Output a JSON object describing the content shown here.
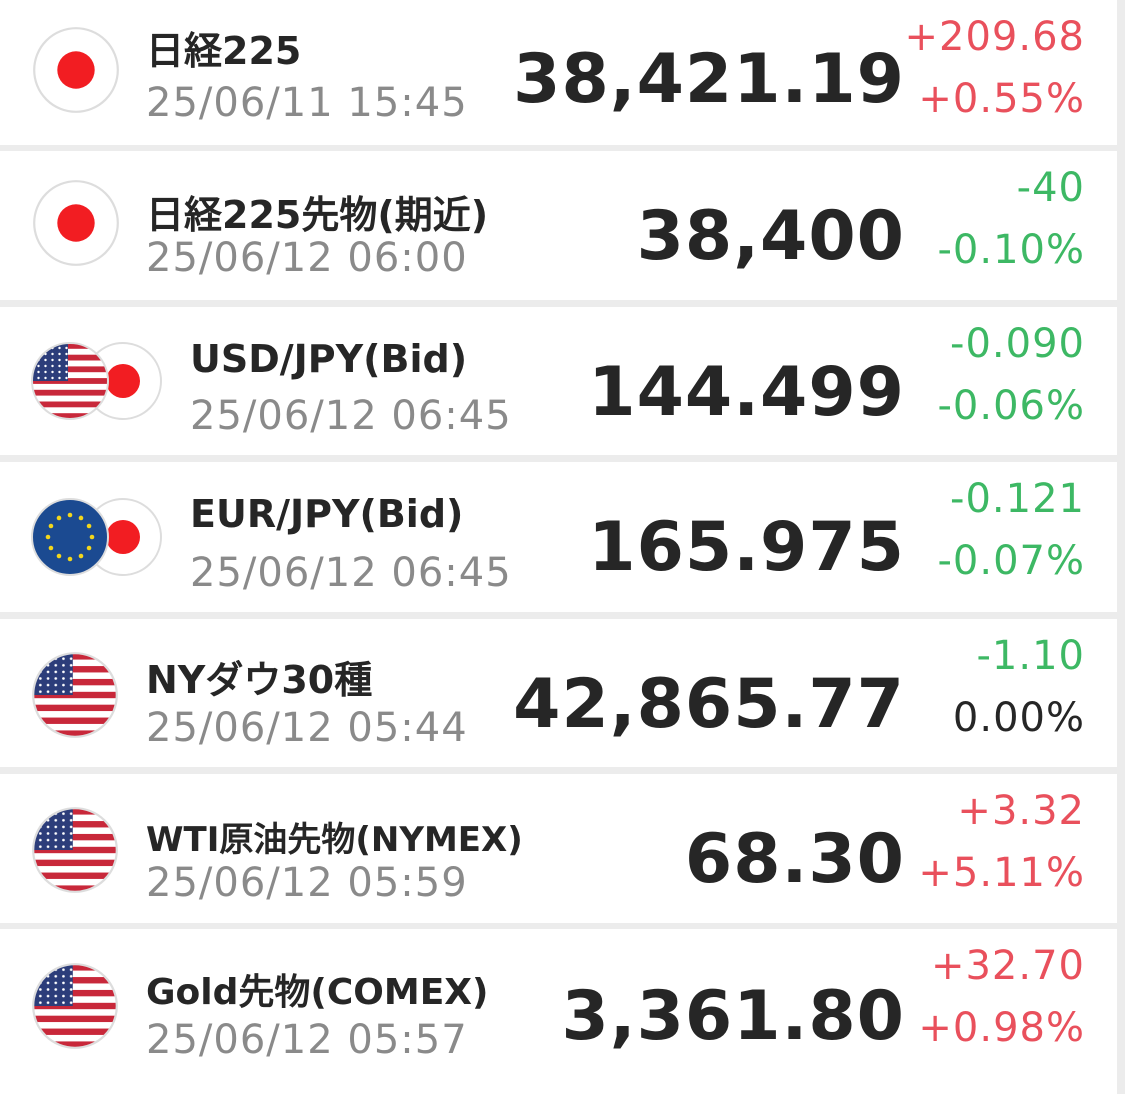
{
  "rows": [
    {
      "name": "日経225",
      "time": "25/06/11 15:45",
      "price": "38,421.19",
      "change": "+209.68",
      "percent": "+0.55%"
    },
    {
      "name": "日経225先物(期近)",
      "time": "25/06/12 06:00",
      "price": "38,400",
      "change": "-40",
      "percent": "-0.10%"
    },
    {
      "name": "USD/JPY(Bid)",
      "time": "25/06/12 06:45",
      "price": "144.499",
      "change": "-0.090",
      "percent": "-0.06%"
    },
    {
      "name": "EUR/JPY(Bid)",
      "time": "25/06/12 06:45",
      "price": "165.975",
      "change": "-0.121",
      "percent": "-0.07%"
    },
    {
      "name": "NYダウ30種",
      "time": "25/06/12 05:44",
      "price": "42,865.77",
      "change": "-1.10",
      "percent": "0.00%"
    },
    {
      "name": "WTI原油先物(NYMEX)",
      "time": "25/06/12 05:59",
      "price": "68.30",
      "change": "+3.32",
      "percent": "+5.11%"
    },
    {
      "name": "Gold先物(COMEX)",
      "time": "25/06/12 05:57",
      "price": "3,361.80",
      "change": "+32.70",
      "percent": "+0.98%"
    }
  ]
}
